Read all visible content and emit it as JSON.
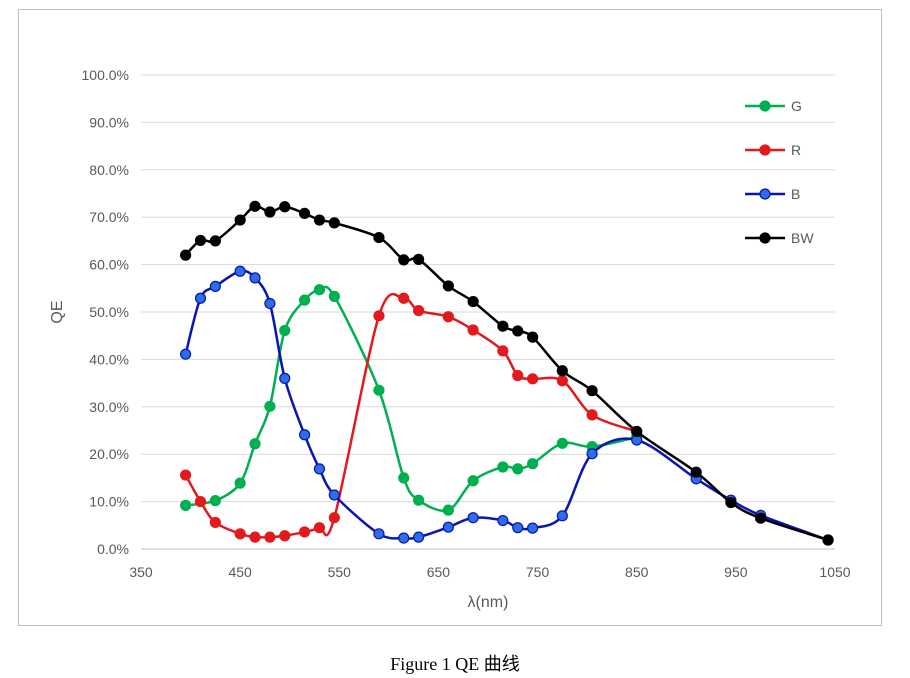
{
  "chart_data": {
    "type": "line",
    "title": "",
    "xlabel": "λ(nm)",
    "ylabel": "QE",
    "xlim": [
      350,
      1050
    ],
    "ylim": [
      0,
      100
    ],
    "x_ticks": [
      350,
      450,
      550,
      650,
      750,
      850,
      950,
      1050
    ],
    "y_ticks": [
      0,
      10,
      20,
      30,
      40,
      50,
      60,
      70,
      80,
      90,
      100
    ],
    "x_tick_labels": [
      "350",
      "450",
      "550",
      "650",
      "750",
      "850",
      "950",
      "1050"
    ],
    "y_tick_labels": [
      "0.0%",
      "10.0%",
      "20.0%",
      "30.0%",
      "40.0%",
      "50.0%",
      "60.0%",
      "70.0%",
      "80.0%",
      "90.0%",
      "100.0%"
    ],
    "grid": true,
    "legend_position": "top-right",
    "series": [
      {
        "name": "G",
        "color": "#00b050",
        "x": [
          395,
          425,
          450,
          465,
          480,
          495,
          515,
          530,
          545,
          590,
          615,
          630,
          660,
          685,
          715,
          730,
          745,
          775,
          805,
          850
        ],
        "y": [
          9.2,
          10.2,
          13.9,
          22.2,
          30.1,
          46.1,
          52.5,
          54.7,
          53.3,
          33.5,
          15.0,
          10.3,
          8.2,
          14.4,
          17.3,
          16.9,
          18.0,
          22.3,
          21.6,
          23.6
        ]
      },
      {
        "name": "R",
        "color": "#e31a1c",
        "x": [
          395,
          410,
          425,
          450,
          465,
          480,
          495,
          515,
          530,
          545,
          590,
          615,
          630,
          660,
          685,
          715,
          730,
          745,
          775,
          805,
          850
        ],
        "y": [
          15.6,
          10.0,
          5.6,
          3.2,
          2.5,
          2.5,
          2.8,
          3.6,
          4.5,
          6.6,
          49.2,
          52.9,
          50.3,
          49.0,
          46.2,
          41.8,
          36.6,
          35.9,
          35.5,
          28.3,
          24.8
        ]
      },
      {
        "name": "B",
        "color": "#0a14b4",
        "marker_fill": "#2b6ee6",
        "x": [
          395,
          410,
          425,
          450,
          465,
          480,
          495,
          515,
          530,
          545,
          590,
          615,
          630,
          660,
          685,
          715,
          730,
          745,
          775,
          805,
          850,
          910,
          945,
          975,
          1043
        ],
        "y": [
          41.1,
          52.9,
          55.4,
          58.6,
          57.2,
          51.8,
          36.0,
          24.1,
          16.9,
          11.4,
          3.2,
          2.3,
          2.5,
          4.6,
          6.6,
          6.0,
          4.5,
          4.4,
          7.0,
          20.1,
          23.0,
          14.8,
          10.3,
          7.1,
          1.9
        ]
      },
      {
        "name": "BW",
        "color": "#000000",
        "x": [
          395,
          410,
          425,
          450,
          465,
          480,
          495,
          515,
          530,
          545,
          590,
          615,
          630,
          660,
          685,
          715,
          730,
          745,
          775,
          805,
          850,
          910,
          945,
          975,
          1043
        ],
        "y": [
          62.0,
          65.1,
          65.0,
          69.4,
          72.3,
          71.1,
          72.2,
          70.8,
          69.4,
          68.8,
          65.7,
          61.0,
          61.1,
          55.5,
          52.2,
          47.0,
          46.0,
          44.7,
          37.6,
          33.4,
          24.8,
          16.2,
          9.8,
          6.5,
          1.9
        ]
      }
    ]
  },
  "caption": "Figure 1 QE 曲线"
}
